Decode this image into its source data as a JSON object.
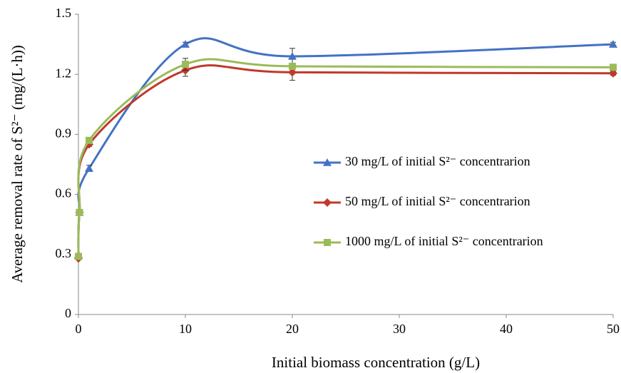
{
  "chart_data": {
    "type": "line",
    "x_label": "Initial biomass concentration (g/L)",
    "y_label": "Average removal rate of S²⁻ (mg/(L·h))",
    "x": [
      0,
      0.1,
      1,
      10,
      20,
      50
    ],
    "series": [
      {
        "name": "30 mg/L of initial S²⁻ concentrarion",
        "color": "#4472c4",
        "marker": "triangle",
        "values": [
          0.3,
          0.51,
          0.73,
          1.35,
          1.29,
          1.35
        ],
        "errors": [
          0,
          0,
          0.015,
          0.01,
          0.04,
          0.01
        ]
      },
      {
        "name": "50 mg/L of initial S²⁻ concentrarion",
        "color": "#c0392b",
        "marker": "diamond",
        "values": [
          0.28,
          0.51,
          0.85,
          1.22,
          1.21,
          1.205
        ],
        "errors": [
          0,
          0,
          0.01,
          0.03,
          0.04,
          0.01
        ]
      },
      {
        "name": "1000 mg/L of initial S²⁻ concentrarion",
        "color": "#9bbb59",
        "marker": "square",
        "values": [
          0.29,
          0.51,
          0.87,
          1.25,
          1.24,
          1.235
        ],
        "errors": [
          0,
          0,
          0.01,
          0.03,
          0.01,
          0.01
        ]
      }
    ],
    "xlim": [
      0,
      50
    ],
    "xticks": [
      0,
      10,
      20,
      30,
      40,
      50
    ],
    "ylim": [
      0,
      1.5
    ],
    "yticks": [
      0,
      0.3,
      0.6,
      0.9,
      1.2,
      1.5
    ],
    "smooth": true,
    "grid": false,
    "legend": "right"
  }
}
